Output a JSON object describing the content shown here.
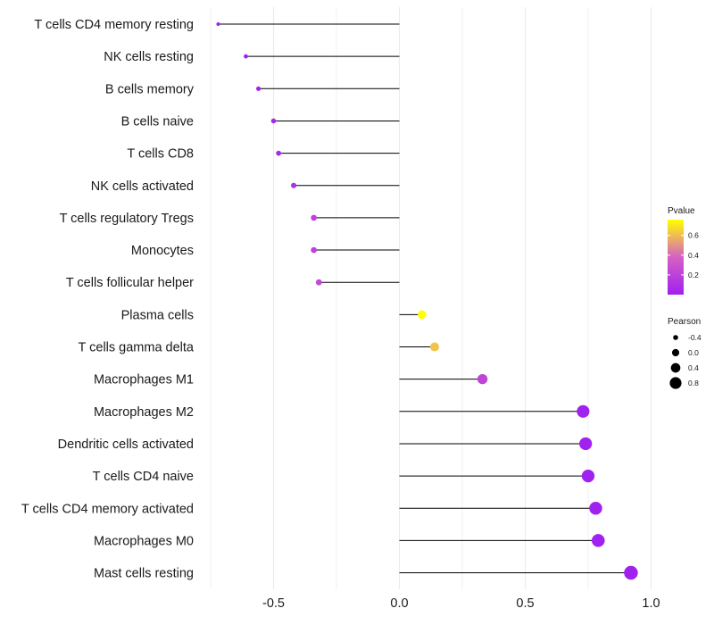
{
  "chart_data": {
    "type": "lollipop",
    "categories": [
      "T cells CD4 memory resting",
      "NK cells resting",
      "B cells memory",
      "B cells naive",
      "T cells CD8",
      "NK cells activated",
      "T cells regulatory  Tregs ",
      "Monocytes",
      "T cells follicular helper",
      "Plasma cells",
      "T cells gamma delta",
      "Macrophages M1",
      "Macrophages M2",
      "Dendritic cells activated",
      "T cells CD4 naive",
      "T cells CD4 memory activated",
      "Macrophages M0",
      "Mast cells resting"
    ],
    "values": [
      -0.72,
      -0.61,
      -0.56,
      -0.5,
      -0.48,
      -0.42,
      -0.34,
      -0.34,
      -0.32,
      0.09,
      0.14,
      0.33,
      0.73,
      0.74,
      0.75,
      0.78,
      0.79,
      0.92
    ],
    "pvalues": [
      0.001,
      0.01,
      0.02,
      0.04,
      0.05,
      0.1,
      0.2,
      0.2,
      0.25,
      0.76,
      0.62,
      0.22,
      0.01,
      0.01,
      0.01,
      0.01,
      0.01,
      0.001
    ],
    "x_ticks": [
      -0.5,
      0.0,
      0.5,
      1.0
    ],
    "x_tick_labels": [
      "-0.5",
      "0.0",
      "0.5",
      "1.0"
    ],
    "xlim": [
      -0.75,
      1.05
    ],
    "title": "",
    "xlabel": "",
    "ylabel": "",
    "legend_color": {
      "title": "Pvalue",
      "ticks": [
        0.2,
        0.4,
        0.6
      ],
      "tick_labels": [
        "0.2",
        "0.4",
        "0.6"
      ],
      "range": [
        0.0,
        0.76
      ],
      "low_color": "#a020f0",
      "high_color": "#ffff00"
    },
    "legend_size": {
      "title": "Pearson",
      "values": [
        -0.4,
        0.0,
        0.4,
        0.8
      ],
      "labels": [
        "-0.4",
        "0.0",
        "0.4",
        "0.8"
      ]
    },
    "colors": {
      "stem": "#000000",
      "grid": "#ebebeb"
    }
  }
}
